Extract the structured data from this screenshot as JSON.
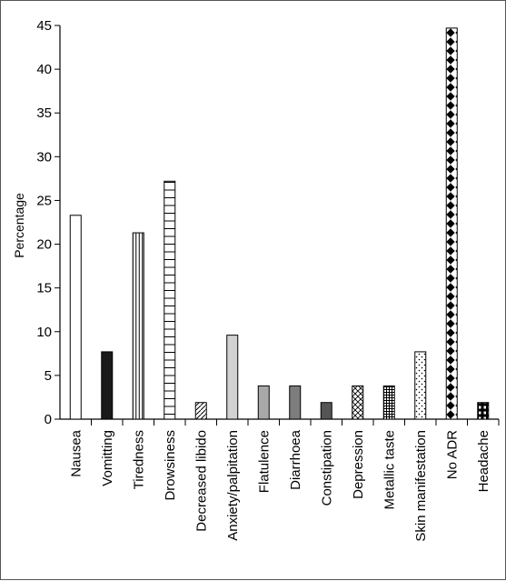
{
  "chart_data": {
    "type": "bar",
    "title": "",
    "xlabel": "",
    "ylabel": "Percentage",
    "ylim": [
      0,
      45
    ],
    "yticks": [
      0,
      5,
      10,
      15,
      20,
      25,
      30,
      35,
      40,
      45
    ],
    "yticks_labels": [
      "0",
      "5",
      "10",
      "15",
      "20",
      "25",
      "30",
      "35",
      "40",
      "45"
    ],
    "grid": false,
    "categories": [
      "Nausea",
      "Vomitting",
      "Tiredness",
      "Drowsiness",
      "Decreased libido",
      "Anxiety/palpitation",
      "Flatulence",
      "Diarrhoea",
      "Constipation",
      "Depression",
      "Metallic taste",
      "Skin manifestation",
      "No ADR",
      "Headache"
    ],
    "values": [
      23.3,
      7.7,
      21.3,
      27.2,
      1.9,
      9.6,
      3.8,
      3.8,
      1.9,
      3.8,
      3.8,
      7.7,
      44.7,
      1.9
    ],
    "bar_patterns": [
      "white",
      "black",
      "vertical-lines",
      "horizontal-lines",
      "diagonal-lines",
      "light-gray",
      "gray",
      "dark-gray",
      "darker-gray",
      "crosshatch",
      "grid",
      "dots",
      "diamonds",
      "headache-blocks"
    ]
  }
}
